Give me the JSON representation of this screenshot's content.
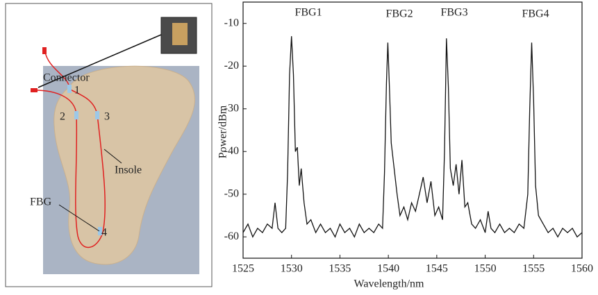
{
  "photo": {
    "labels": [
      "Connector",
      "1",
      "2",
      "3",
      "Insole",
      "FBG",
      "4"
    ]
  },
  "chart_data": {
    "type": "line",
    "xlabel": "Wavelength/nm",
    "ylabel": "Power/dBm",
    "xlim": [
      1525,
      1560
    ],
    "ylim": [
      -65,
      -5
    ],
    "xticks": [
      1525,
      1530,
      1535,
      1540,
      1545,
      1550,
      1555,
      1560
    ],
    "yticks": [
      -60,
      -50,
      -40,
      -30,
      -20,
      -10
    ],
    "annotations": [
      "FBG1",
      "FBG2",
      "FBG3",
      "FBG4"
    ],
    "series": [
      {
        "color": "#111111",
        "x": [
          1525,
          1525.5,
          1526,
          1526.5,
          1527,
          1527.5,
          1528,
          1528.3,
          1528.6,
          1529,
          1529.4,
          1529.6,
          1529.8,
          1530,
          1530.2,
          1530.4,
          1530.6,
          1530.8,
          1531,
          1531.3,
          1531.6,
          1532,
          1532.5,
          1533,
          1533.5,
          1534,
          1534.5,
          1535,
          1535.5,
          1536,
          1536.5,
          1537,
          1537.5,
          1538,
          1538.5,
          1539,
          1539.4,
          1539.6,
          1539.8,
          1539.95,
          1540.1,
          1540.3,
          1540.6,
          1540.9,
          1541.2,
          1541.6,
          1542,
          1542.4,
          1542.8,
          1543.2,
          1543.6,
          1544,
          1544.4,
          1544.8,
          1545.2,
          1545.6,
          1545.8,
          1546,
          1546.2,
          1546.4,
          1546.7,
          1547,
          1547.3,
          1547.6,
          1547.9,
          1548.2,
          1548.6,
          1549,
          1549.5,
          1550,
          1550.3,
          1550.6,
          1551,
          1551.5,
          1552,
          1552.5,
          1553,
          1553.5,
          1554,
          1554.4,
          1554.6,
          1554.8,
          1555,
          1555.2,
          1555.5,
          1556,
          1556.5,
          1557,
          1557.5,
          1558,
          1558.5,
          1559,
          1559.5,
          1560
        ],
        "values": [
          -59,
          -57,
          -60,
          -58,
          -59,
          -57,
          -58,
          -52,
          -58,
          -59,
          -58,
          -45,
          -22,
          -13,
          -22,
          -40,
          -39,
          -48,
          -44,
          -52,
          -57,
          -56,
          -59,
          -57,
          -59,
          -58,
          -60,
          -57,
          -59,
          -58,
          -60,
          -57,
          -59,
          -58,
          -59,
          -57,
          -58,
          -45,
          -24,
          -14.5,
          -24,
          -38,
          -44,
          -50,
          -55,
          -53,
          -56,
          -52,
          -54,
          -50,
          -46,
          -52,
          -47,
          -55,
          -53,
          -56,
          -40,
          -13.5,
          -25,
          -44,
          -48,
          -43,
          -50,
          -42,
          -53,
          -52,
          -57,
          -58,
          -56,
          -59,
          -54,
          -58,
          -59,
          -57,
          -59,
          -58,
          -59,
          -57,
          -58,
          -50,
          -30,
          -14.5,
          -28,
          -48,
          -55,
          -57,
          -59,
          -58,
          -60,
          -58,
          -59,
          -58,
          -60,
          -59
        ]
      }
    ]
  }
}
